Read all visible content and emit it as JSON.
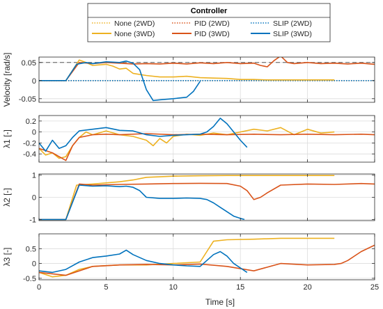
{
  "legend": {
    "title": "Controller",
    "entries": [
      {
        "label": "None (2WD)",
        "color": "#EDB120",
        "dash": "dotted"
      },
      {
        "label": "PID (2WD)",
        "color": "#D95319",
        "dash": "dotted"
      },
      {
        "label": "SLIP (2WD)",
        "color": "#0072BD",
        "dash": "dotted"
      },
      {
        "label": "None (3WD)",
        "color": "#EDB120",
        "dash": "solid"
      },
      {
        "label": "PID (3WD)",
        "color": "#D95319",
        "dash": "solid"
      },
      {
        "label": "SLIP (3WD)",
        "color": "#0072BD",
        "dash": "solid"
      }
    ]
  },
  "xaxis": {
    "label": "Time [s]",
    "ticks": [
      0,
      5,
      10,
      15,
      20,
      25
    ],
    "tick_labels": [
      "0",
      "5",
      "10",
      "15",
      "20",
      "25"
    ],
    "range": [
      0,
      25
    ]
  },
  "chart_data": [
    {
      "type": "line",
      "ylabel": "Velocity [rad/s]",
      "ylim": [
        -0.06,
        0.065
      ],
      "yticks": [
        -0.05,
        0,
        0.05
      ],
      "ytick_labels": [
        "-0.05",
        "0",
        "0.05"
      ],
      "grid": true,
      "reference_lines": [
        0.05
      ],
      "series": [
        {
          "name": "None (2WD)",
          "style": "dotted",
          "color": "#EDB120",
          "x": [
            0,
            25
          ],
          "y": [
            0,
            0
          ]
        },
        {
          "name": "PID (2WD)",
          "style": "dotted",
          "color": "#D95319",
          "x": [
            0,
            25
          ],
          "y": [
            0,
            0
          ]
        },
        {
          "name": "SLIP (2WD)",
          "style": "dotted",
          "color": "#0072BD",
          "x": [
            0,
            25
          ],
          "y": [
            0,
            0
          ]
        },
        {
          "name": "None (3WD)",
          "style": "solid",
          "color": "#EDB120",
          "x": [
            0,
            2,
            3,
            3.5,
            4,
            5,
            5.5,
            6,
            6.5,
            7,
            8,
            9,
            10,
            11,
            12,
            13,
            14,
            15,
            16,
            17,
            18,
            19,
            20,
            21,
            22
          ],
          "y": [
            0,
            0,
            0.057,
            0.05,
            0.042,
            0.045,
            0.04,
            0.032,
            0.034,
            0.02,
            0.014,
            0.01,
            0.01,
            0.012,
            0.008,
            0.007,
            0.006,
            0.003,
            0.003,
            0.002,
            0.002,
            0.002,
            0.002,
            0.002,
            0.002
          ]
        },
        {
          "name": "PID (3WD)",
          "style": "solid",
          "color": "#D95319",
          "x": [
            0,
            2,
            3,
            4,
            5,
            6,
            7,
            8,
            9,
            10,
            11,
            12,
            13,
            14,
            15,
            16,
            16.5,
            17,
            17.5,
            18,
            18.5,
            19,
            20,
            21,
            22,
            23,
            24,
            25
          ],
          "y": [
            0,
            0,
            0.05,
            0.047,
            0.05,
            0.048,
            0.046,
            0.047,
            0.046,
            0.048,
            0.046,
            0.049,
            0.047,
            0.05,
            0.047,
            0.048,
            0.042,
            0.038,
            0.055,
            0.068,
            0.05,
            0.047,
            0.05,
            0.047,
            0.048,
            0.046,
            0.048,
            0.045
          ]
        },
        {
          "name": "SLIP (3WD)",
          "style": "solid",
          "color": "#0072BD",
          "x": [
            0,
            2,
            2.8,
            3.5,
            4,
            5,
            6,
            6.5,
            7,
            7.5,
            8,
            8.5,
            9,
            10,
            11,
            11.5,
            12
          ],
          "y": [
            0,
            0,
            0.045,
            0.05,
            0.047,
            0.052,
            0.05,
            0.054,
            0.048,
            0.03,
            -0.025,
            -0.055,
            -0.053,
            -0.05,
            -0.046,
            -0.03,
            -0.002
          ]
        }
      ]
    },
    {
      "type": "line",
      "ylabel": "λ1 [-]",
      "ylim": [
        -0.55,
        0.3
      ],
      "yticks": [
        -0.4,
        -0.2,
        0,
        0.2
      ],
      "ytick_labels": [
        "-0.4",
        "-0.2",
        "0",
        "0.2"
      ],
      "grid": true,
      "series": [
        {
          "name": "None (3WD)",
          "style": "solid",
          "color": "#EDB120",
          "x": [
            0,
            0.5,
            1,
            1.5,
            2,
            2.5,
            3,
            3.5,
            4,
            5,
            6,
            7,
            8,
            8.5,
            9,
            9.5,
            10,
            11,
            12,
            13,
            14,
            15,
            16,
            17,
            18,
            19,
            20,
            21,
            22
          ],
          "y": [
            -0.3,
            -0.42,
            -0.38,
            -0.48,
            -0.45,
            -0.25,
            -0.1,
            0,
            -0.05,
            0.02,
            -0.05,
            -0.08,
            -0.15,
            -0.25,
            -0.12,
            -0.2,
            -0.08,
            -0.04,
            -0.06,
            -0.02,
            -0.05,
            0,
            0.05,
            0.02,
            0.08,
            -0.05,
            0.05,
            -0.02,
            0
          ]
        },
        {
          "name": "PID (3WD)",
          "style": "solid",
          "color": "#D95319",
          "x": [
            0,
            1,
            2,
            2.5,
            3,
            4,
            5,
            6,
            8,
            10,
            12,
            14,
            16,
            18,
            20,
            22,
            24,
            25
          ],
          "y": [
            -0.3,
            -0.38,
            -0.52,
            -0.25,
            -0.1,
            -0.05,
            -0.04,
            -0.05,
            -0.03,
            -0.05,
            -0.04,
            -0.05,
            -0.04,
            -0.05,
            -0.04,
            -0.05,
            -0.04,
            -0.05
          ]
        },
        {
          "name": "SLIP (3WD)",
          "style": "solid",
          "color": "#0072BD",
          "x": [
            0,
            0.5,
            1,
            1.5,
            2,
            2.5,
            3,
            4,
            5,
            6,
            7,
            8,
            9,
            10,
            11,
            12,
            12.5,
            13,
            13.5,
            14,
            14.5,
            15,
            15.5
          ],
          "y": [
            -0.2,
            -0.35,
            -0.15,
            -0.3,
            -0.25,
            -0.1,
            0.02,
            0.05,
            0.08,
            0.03,
            0.02,
            -0.05,
            -0.08,
            -0.06,
            -0.05,
            -0.04,
            0,
            0.1,
            0.25,
            0.15,
            0,
            -0.15,
            -0.28
          ]
        }
      ]
    },
    {
      "type": "line",
      "ylabel": "λ2 [-]",
      "ylim": [
        -1.05,
        1.05
      ],
      "yticks": [
        -1,
        0,
        1
      ],
      "ytick_labels": [
        "-1",
        "0",
        "1"
      ],
      "grid": true,
      "series": [
        {
          "name": "None (3WD)",
          "style": "solid",
          "color": "#EDB120",
          "x": [
            0,
            2,
            2.8,
            4,
            5,
            6,
            7,
            8,
            10,
            12,
            14,
            16,
            18,
            20,
            22
          ],
          "y": [
            -1,
            -1,
            0.55,
            0.6,
            0.65,
            0.7,
            0.78,
            0.9,
            0.95,
            0.97,
            0.98,
            0.98,
            0.98,
            0.98,
            0.98
          ]
        },
        {
          "name": "PID (3WD)",
          "style": "solid",
          "color": "#D95319",
          "x": [
            0,
            2,
            3,
            4,
            6,
            8,
            10,
            12,
            14,
            15,
            15.5,
            16,
            16.5,
            17,
            18,
            20,
            22,
            24,
            25
          ],
          "y": [
            -1,
            -1,
            0.6,
            0.55,
            0.58,
            0.6,
            0.62,
            0.63,
            0.62,
            0.5,
            0.3,
            -0.1,
            0,
            0.2,
            0.55,
            0.6,
            0.58,
            0.62,
            0.6
          ]
        },
        {
          "name": "SLIP (3WD)",
          "style": "solid",
          "color": "#0072BD",
          "x": [
            0,
            2,
            3,
            4,
            5,
            6,
            6.5,
            7,
            7.5,
            8,
            9,
            10,
            11,
            12,
            12.5,
            13,
            13.5,
            14,
            14.5,
            15,
            15.3
          ],
          "y": [
            -1,
            -1,
            0.55,
            0.5,
            0.52,
            0.48,
            0.5,
            0.45,
            0.3,
            0,
            -0.05,
            -0.05,
            -0.03,
            -0.05,
            -0.1,
            -0.25,
            -0.45,
            -0.65,
            -0.85,
            -0.95,
            -1
          ]
        }
      ]
    },
    {
      "type": "line",
      "ylabel": "λ3 [-]",
      "ylim": [
        -0.55,
        1.0
      ],
      "yticks": [
        -0.5,
        0,
        0.5
      ],
      "ytick_labels": [
        "-0.5",
        "0",
        "0.5"
      ],
      "grid": true,
      "series": [
        {
          "name": "None (3WD)",
          "style": "solid",
          "color": "#EDB120",
          "x": [
            0,
            1,
            2,
            3,
            4,
            6,
            8,
            10,
            12,
            12.5,
            13,
            14,
            16,
            18,
            20,
            22
          ],
          "y": [
            -0.3,
            -0.45,
            -0.4,
            -0.2,
            -0.1,
            -0.05,
            -0.05,
            0,
            0.05,
            0.4,
            0.75,
            0.8,
            0.82,
            0.85,
            0.85,
            0.85
          ]
        },
        {
          "name": "PID (3WD)",
          "style": "solid",
          "color": "#D95319",
          "x": [
            0,
            2,
            4,
            6,
            8,
            10,
            12,
            14,
            16,
            18,
            20,
            22,
            22.5,
            23,
            24,
            25
          ],
          "y": [
            -0.3,
            -0.4,
            -0.1,
            -0.05,
            -0.03,
            -0.05,
            -0.02,
            -0.1,
            -0.25,
            0,
            -0.05,
            -0.03,
            0,
            0.1,
            0.4,
            0.62
          ]
        },
        {
          "name": "SLIP (3WD)",
          "style": "solid",
          "color": "#0072BD",
          "x": [
            0,
            1,
            2,
            3,
            4,
            5,
            6,
            6.5,
            7,
            8,
            9,
            10,
            11,
            12,
            12.5,
            13,
            13.5,
            14,
            14.5,
            15,
            15.5
          ],
          "y": [
            -0.25,
            -0.3,
            -0.2,
            0.05,
            0.2,
            0.25,
            0.32,
            0.45,
            0.3,
            0.1,
            0,
            -0.05,
            -0.08,
            -0.1,
            0.1,
            0.3,
            0.4,
            0.25,
            0,
            -0.15,
            -0.3
          ]
        }
      ]
    }
  ]
}
